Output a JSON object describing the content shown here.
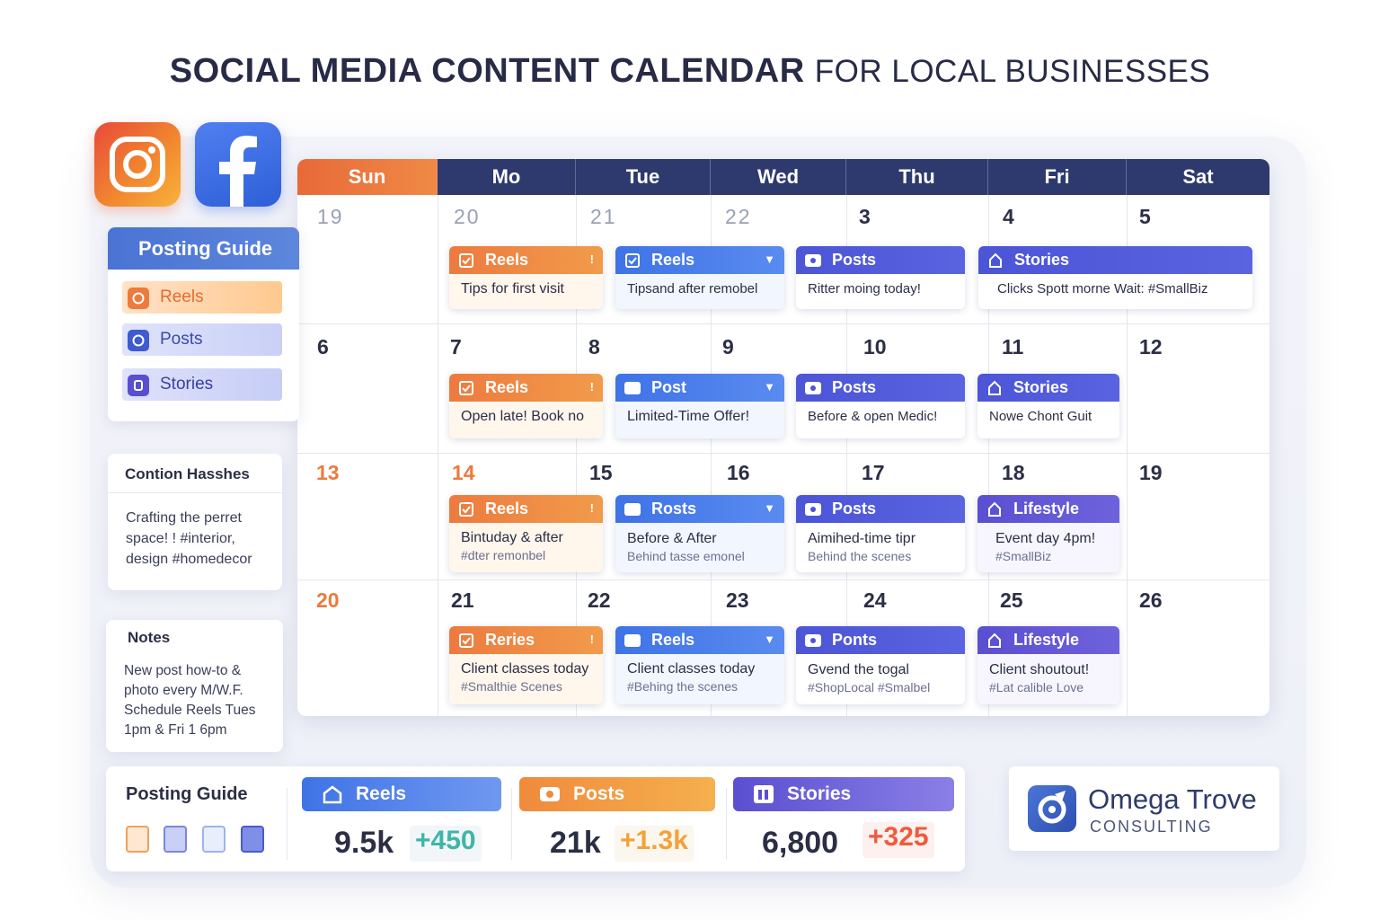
{
  "title": {
    "bold": "SOCIAL MEDIA CONTENT CALENDAR",
    "light": "FOR LOCAL BUSINESSES"
  },
  "logos": {
    "instagram": "instagram-icon",
    "facebook": "facebook-icon"
  },
  "calendar": {
    "days": [
      "Sun",
      "Mo",
      "Tue",
      "Wed",
      "Thu",
      "Fri",
      "Sat"
    ],
    "weeks": [
      [
        "19",
        "20",
        "21",
        "22",
        "3",
        "4",
        "5"
      ],
      [
        "6",
        "7",
        "8",
        "9",
        "10",
        "11",
        "12"
      ],
      [
        "13",
        "14",
        "15",
        "16",
        "17",
        "18",
        "19"
      ],
      [
        "20",
        "21",
        "22",
        "23",
        "24",
        "25",
        "26"
      ]
    ],
    "cards": [
      {
        "title": "Reels",
        "text": "Tips for first visit",
        "sub": "",
        "tail": "!"
      },
      {
        "title": "Reels",
        "text": "Tipsand after remobel",
        "sub": "",
        "tail": "▼"
      },
      {
        "title": "Posts",
        "text": "Ritter moing today!",
        "sub": "",
        "tail": ""
      },
      {
        "title": "Stories",
        "text": "Clicks Spott morne Wait: #SmallBiz",
        "sub": "",
        "tail": ""
      },
      {
        "title": "Reels",
        "text": "Open late! Book no",
        "sub": "",
        "tail": "!"
      },
      {
        "title": "Post",
        "text": "Limited-Time Offer!",
        "sub": "",
        "tail": "▼"
      },
      {
        "title": "Posts",
        "text": "Before & open Medic!",
        "sub": "",
        "tail": ""
      },
      {
        "title": "Stories",
        "text": "Nowe Chont Guit",
        "sub": "",
        "tail": ""
      },
      {
        "title": "Reels",
        "text": "Bintuday & after",
        "sub": "#dter remonbel",
        "tail": "!"
      },
      {
        "title": "Rosts",
        "text": "Before & After",
        "sub": "Behind tasse emonel",
        "tail": "▼"
      },
      {
        "title": "Posts",
        "text": "Aimihed-time tipr",
        "sub": "Behind the scenes",
        "tail": ""
      },
      {
        "title": "Lifestyle",
        "text": "Event day 4pm!",
        "sub": "#SmallBiz",
        "tail": ""
      },
      {
        "title": "Reries",
        "text": "Client classes today",
        "sub": "#Smalthie Scenes",
        "tail": "!"
      },
      {
        "title": "Reels",
        "text": "Client classes today",
        "sub": "#Behing the scenes",
        "tail": "▼"
      },
      {
        "title": "Ponts",
        "text": "Gvend the togal",
        "sub": "#ShopLocal #Smalbel",
        "tail": ""
      },
      {
        "title": "Lifestyle",
        "text": "Client shoutout!",
        "sub": "#Lat calible Love",
        "tail": ""
      }
    ]
  },
  "guide": {
    "title": "Posting Guide",
    "items": [
      {
        "label": "Reels",
        "icon": "reels-icon"
      },
      {
        "label": "Posts",
        "icon": "posts-icon"
      },
      {
        "label": "Stories",
        "icon": "stories-icon"
      }
    ]
  },
  "caption": {
    "title": "Contion Hasshes",
    "lines": [
      "Crafting the perret",
      "space! ! #interior,",
      "design #homedecor"
    ]
  },
  "notes": {
    "title": "Notes",
    "lines": [
      "New post how-to &",
      "photo every M/W.F.",
      "Schedule Reels Tues",
      "1pm & Fri 1 6pm"
    ]
  },
  "stats": {
    "title": "Posting Guide",
    "items": [
      {
        "label": "Reels",
        "value": "9.5k",
        "delta": "+450",
        "color": "#3f73e6"
      },
      {
        "label": "Posts",
        "value": "21k",
        "delta": "+1.3k",
        "color": "#f1923f"
      },
      {
        "label": "Stories",
        "value": "6,800",
        "delta": "+325",
        "color": "#6a5fdc"
      }
    ]
  },
  "brand": {
    "name": "Omega Trove",
    "sub": "CONSULTING"
  }
}
